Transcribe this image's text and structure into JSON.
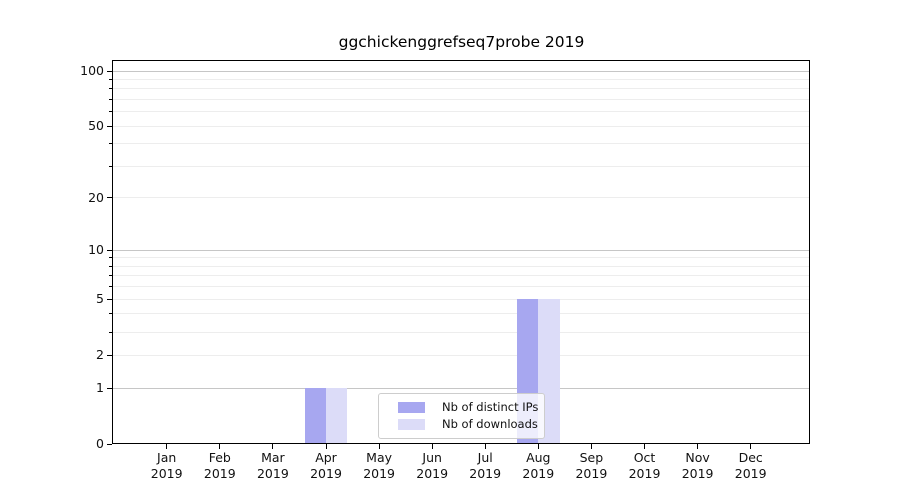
{
  "chart_data": {
    "type": "bar",
    "title": "ggchickenggrefseq7probe 2019",
    "categories": [
      "Jan",
      "Feb",
      "Mar",
      "Apr",
      "May",
      "Jun",
      "Jul",
      "Aug",
      "Sep",
      "Oct",
      "Nov",
      "Dec"
    ],
    "category_year": "2019",
    "series": [
      {
        "name": "Nb of distinct IPs",
        "color": "#a7a7f0",
        "values": [
          0,
          0,
          0,
          1,
          0,
          0,
          0,
          5,
          0,
          0,
          0,
          0
        ]
      },
      {
        "name": "Nb of downloads",
        "color": "#dcdcf8",
        "values": [
          0,
          0,
          0,
          1,
          0,
          0,
          0,
          5,
          0,
          0,
          0,
          0
        ]
      }
    ],
    "y_scale": "log1p",
    "y_ticks": [
      "0",
      "1",
      "2",
      "5",
      "10",
      "20",
      "50",
      "100"
    ],
    "y_tick_values": [
      0,
      1,
      2,
      5,
      10,
      20,
      50,
      100
    ],
    "y_major_gridline_values": [
      1,
      10,
      100
    ],
    "y_minor_gridline_values": [
      2,
      3,
      4,
      5,
      6,
      7,
      8,
      9,
      20,
      30,
      40,
      50,
      60,
      70,
      80,
      90
    ],
    "ylim": [
      0,
      113
    ],
    "grid": "horizontal",
    "legend_position": "lower center inside"
  },
  "colors": {
    "bar_distinct_ips": "#a7a7f0",
    "bar_downloads": "#dcdcf8",
    "major_grid": "#c6c6c6",
    "minor_grid": "#ededed",
    "spine": "#000000",
    "text": "#111111",
    "legend_border": "#cdcdcd"
  }
}
